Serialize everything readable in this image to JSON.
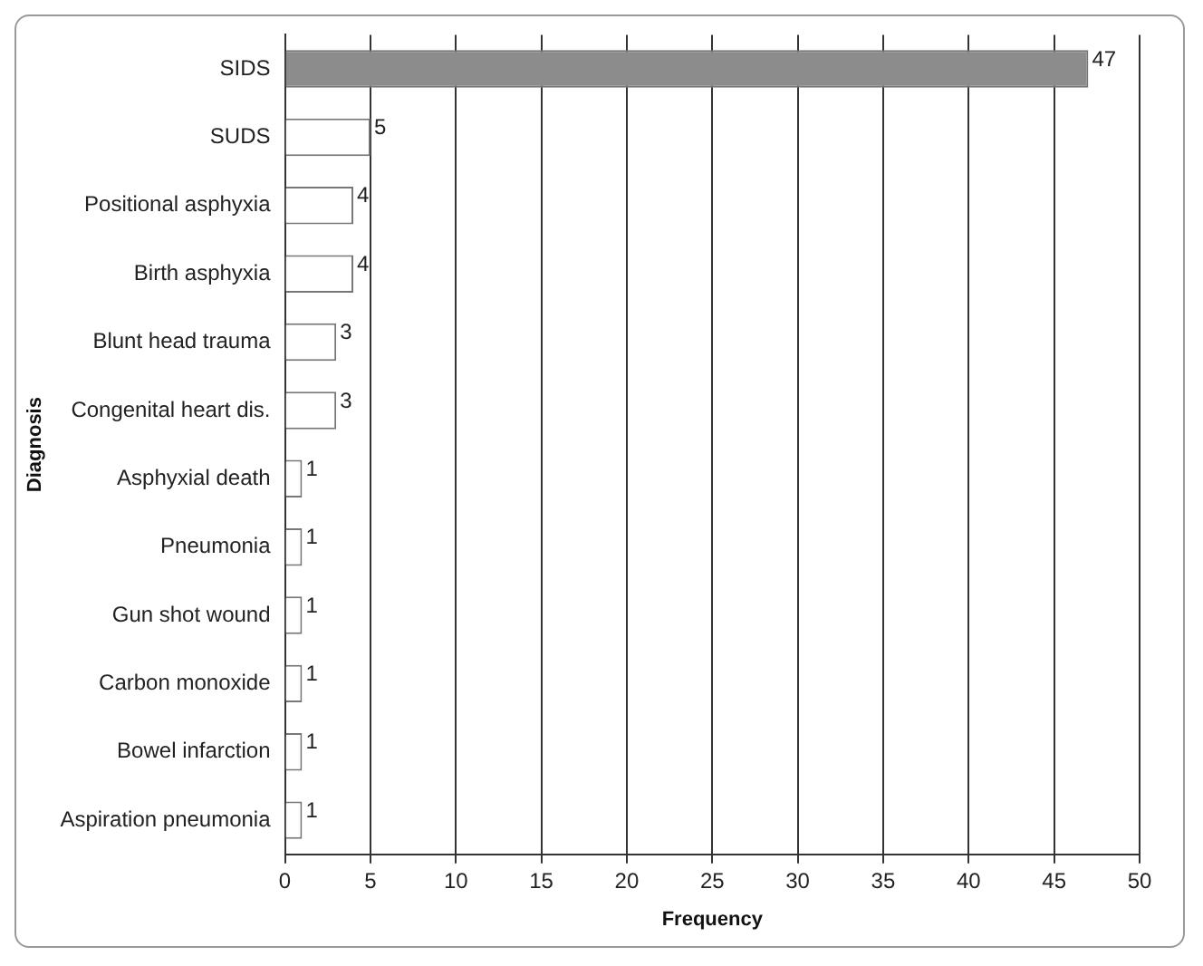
{
  "chart_data": {
    "type": "bar",
    "orientation": "horizontal",
    "xlabel": "Frequency",
    "ylabel": "Diagnosis",
    "categories": [
      "SIDS",
      "SUDS",
      "Positional asphyxia",
      "Birth asphyxia",
      "Blunt head trauma",
      "Congenital heart dis.",
      "Asphyxial death",
      "Pneumonia",
      "Gun shot wound",
      "Carbon monoxide",
      "Bowel infarction",
      "Aspiration pneumonia"
    ],
    "values": [
      47,
      5,
      4,
      4,
      3,
      3,
      1,
      1,
      1,
      1,
      1,
      1
    ],
    "colors": [
      "#8c8c8c",
      "#ffffff",
      "#ffffff",
      "#ffffff",
      "#ffffff",
      "#ffffff",
      "#ffffff",
      "#ffffff",
      "#ffffff",
      "#ffffff",
      "#ffffff",
      "#ffffff"
    ],
    "xlim": [
      0,
      50
    ],
    "xticks": [
      0,
      5,
      10,
      15,
      20,
      25,
      30,
      35,
      40,
      45,
      50
    ],
    "grid": "x",
    "data_labels": true,
    "legend": false
  }
}
